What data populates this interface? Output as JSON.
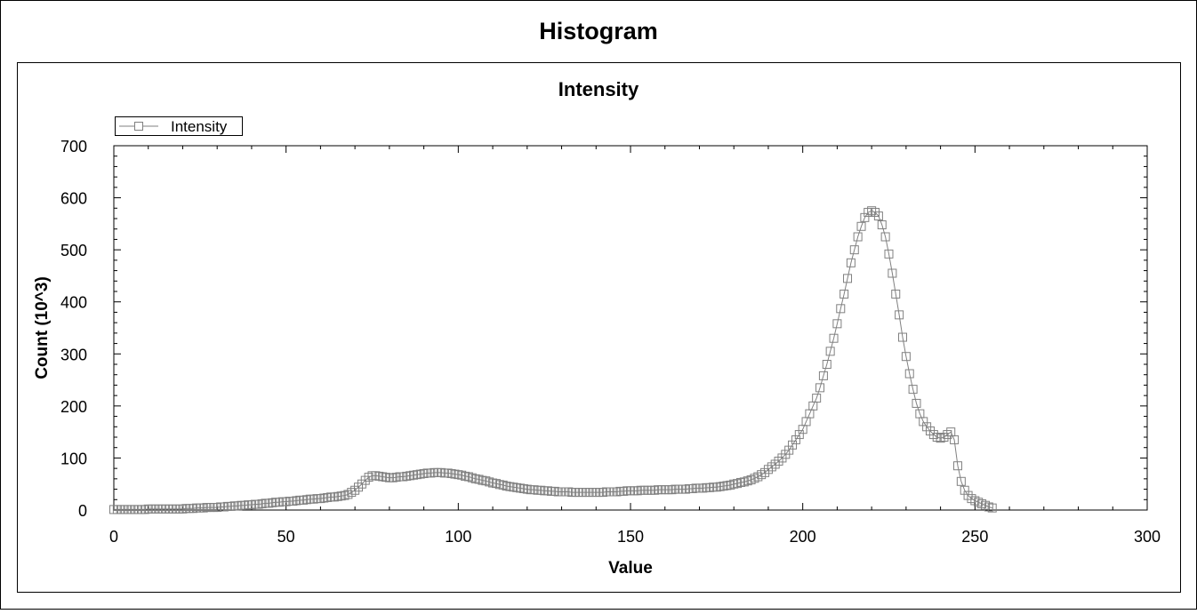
{
  "window_title": "Histogram",
  "chart_data": {
    "type": "line",
    "title": "Intensity",
    "x_label": "Value",
    "y_label": "Count (10^3)",
    "x": [
      0,
      1,
      2,
      3,
      4,
      5,
      6,
      7,
      8,
      9,
      10,
      11,
      12,
      13,
      14,
      15,
      16,
      17,
      18,
      19,
      20,
      21,
      22,
      23,
      24,
      25,
      26,
      27,
      28,
      29,
      30,
      31,
      32,
      33,
      34,
      35,
      36,
      37,
      38,
      39,
      40,
      41,
      42,
      43,
      44,
      45,
      46,
      47,
      48,
      49,
      50,
      51,
      52,
      53,
      54,
      55,
      56,
      57,
      58,
      59,
      60,
      61,
      62,
      63,
      64,
      65,
      66,
      67,
      68,
      69,
      70,
      71,
      72,
      73,
      74,
      75,
      76,
      77,
      78,
      79,
      80,
      81,
      82,
      83,
      84,
      85,
      86,
      87,
      88,
      89,
      90,
      91,
      92,
      93,
      94,
      95,
      96,
      97,
      98,
      99,
      100,
      101,
      102,
      103,
      104,
      105,
      106,
      107,
      108,
      109,
      110,
      111,
      112,
      113,
      114,
      115,
      116,
      117,
      118,
      119,
      120,
      121,
      122,
      123,
      124,
      125,
      126,
      127,
      128,
      129,
      130,
      131,
      132,
      133,
      134,
      135,
      136,
      137,
      138,
      139,
      140,
      141,
      142,
      143,
      144,
      145,
      146,
      147,
      148,
      149,
      150,
      151,
      152,
      153,
      154,
      155,
      156,
      157,
      158,
      159,
      160,
      161,
      162,
      163,
      164,
      165,
      166,
      167,
      168,
      169,
      170,
      171,
      172,
      173,
      174,
      175,
      176,
      177,
      178,
      179,
      180,
      181,
      182,
      183,
      184,
      185,
      186,
      187,
      188,
      189,
      190,
      191,
      192,
      193,
      194,
      195,
      196,
      197,
      198,
      199,
      200,
      201,
      202,
      203,
      204,
      205,
      206,
      207,
      208,
      209,
      210,
      211,
      212,
      213,
      214,
      215,
      216,
      217,
      218,
      219,
      220,
      221,
      222,
      223,
      224,
      225,
      226,
      227,
      228,
      229,
      230,
      231,
      232,
      233,
      234,
      235,
      236,
      237,
      238,
      239,
      240,
      241,
      242,
      243,
      244,
      245,
      246,
      247,
      248,
      249,
      250,
      251,
      252,
      253,
      254,
      255
    ],
    "series": [
      {
        "name": "Intensity",
        "color": "#808080",
        "values": [
          1,
          1,
          1,
          1,
          1,
          1,
          1,
          1,
          1,
          1,
          2,
          2,
          2,
          2,
          2,
          2,
          2,
          2,
          2,
          2,
          2,
          3,
          3,
          3,
          4,
          4,
          4,
          5,
          5,
          5,
          5,
          6,
          6,
          7,
          7,
          8,
          8,
          9,
          9,
          10,
          10,
          11,
          11,
          12,
          13,
          13,
          14,
          15,
          15,
          16,
          16,
          17,
          17,
          18,
          19,
          19,
          20,
          21,
          21,
          22,
          22,
          23,
          24,
          25,
          25,
          26,
          27,
          28,
          30,
          34,
          38,
          44,
          50,
          57,
          63,
          66,
          66,
          65,
          64,
          63,
          62,
          62,
          63,
          64,
          64,
          65,
          66,
          67,
          68,
          69,
          70,
          71,
          71,
          72,
          72,
          72,
          71,
          71,
          70,
          69,
          68,
          67,
          65,
          64,
          62,
          60,
          59,
          57,
          56,
          54,
          52,
          51,
          49,
          48,
          46,
          45,
          44,
          43,
          42,
          41,
          40,
          39,
          39,
          38,
          38,
          37,
          37,
          36,
          36,
          35,
          35,
          35,
          35,
          34,
          34,
          34,
          34,
          34,
          34,
          34,
          34,
          34,
          34,
          35,
          35,
          35,
          35,
          36,
          36,
          37,
          37,
          37,
          37,
          38,
          38,
          38,
          38,
          38,
          39,
          39,
          39,
          39,
          39,
          40,
          40,
          40,
          40,
          41,
          41,
          42,
          42,
          42,
          43,
          43,
          44,
          44,
          45,
          46,
          47,
          48,
          50,
          51,
          53,
          54,
          56,
          58,
          61,
          64,
          68,
          72,
          78,
          83,
          88,
          94,
          100,
          107,
          115,
          125,
          135,
          145,
          155,
          170,
          185,
          200,
          215,
          235,
          258,
          280,
          305,
          330,
          358,
          387,
          415,
          445,
          475,
          500,
          525,
          545,
          562,
          572,
          575,
          572,
          565,
          548,
          525,
          492,
          455,
          415,
          375,
          332,
          295,
          262,
          232,
          205,
          185,
          170,
          160,
          152,
          145,
          140,
          138,
          140,
          145,
          150,
          135,
          85,
          55,
          38,
          28,
          22,
          18,
          15,
          12,
          9,
          6,
          4
        ]
      }
    ],
    "xlim": [
      0,
      300
    ],
    "xticks": [
      0,
      50,
      100,
      150,
      200,
      250,
      300
    ],
    "ylim": [
      0,
      700
    ],
    "yticks": [
      0,
      100,
      200,
      300,
      400,
      500,
      600,
      700
    ],
    "grid": false,
    "legend": "upper left"
  }
}
